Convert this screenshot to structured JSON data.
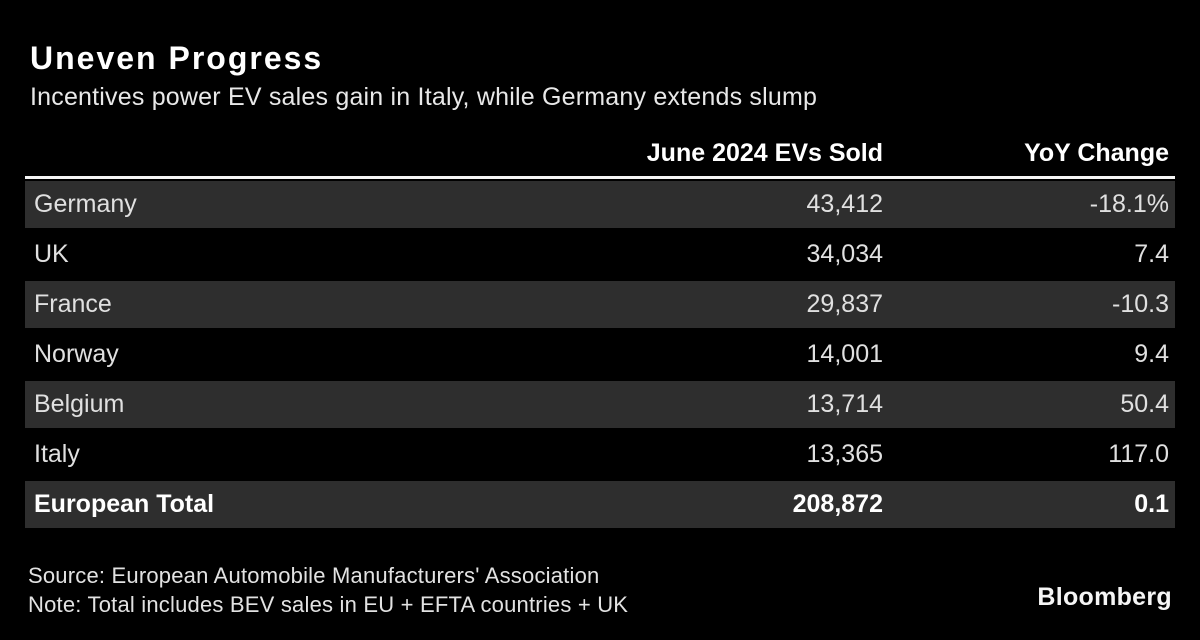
{
  "header": {
    "title": "Uneven Progress",
    "subtitle": "Incentives power EV sales gain in Italy, while Germany extends slump"
  },
  "table": {
    "col_evs": "June 2024 EVs Sold",
    "col_yoy": "YoY Change"
  },
  "chart_data": {
    "type": "table",
    "title": "Uneven Progress",
    "subtitle": "Incentives power EV sales gain in Italy, while Germany extends slump",
    "columns": [
      "",
      "June 2024 EVs Sold",
      "YoY Change"
    ],
    "rows": [
      {
        "country": "Germany",
        "evs_sold": "43,412",
        "yoy_change": "-18.1%",
        "striped": true,
        "total": false
      },
      {
        "country": "UK",
        "evs_sold": "34,034",
        "yoy_change": "7.4",
        "striped": false,
        "total": false
      },
      {
        "country": "France",
        "evs_sold": "29,837",
        "yoy_change": "-10.3",
        "striped": true,
        "total": false
      },
      {
        "country": "Norway",
        "evs_sold": "14,001",
        "yoy_change": "9.4",
        "striped": false,
        "total": false
      },
      {
        "country": "Belgium",
        "evs_sold": "13,714",
        "yoy_change": "50.4",
        "striped": true,
        "total": false
      },
      {
        "country": "Italy",
        "evs_sold": "13,365",
        "yoy_change": "117.0",
        "striped": false,
        "total": false
      },
      {
        "country": "European Total",
        "evs_sold": "208,872",
        "yoy_change": "0.1",
        "striped": true,
        "total": true
      }
    ],
    "numeric": {
      "evs_sold": [
        43412,
        34034,
        29837,
        14001,
        13714,
        13365,
        208872
      ],
      "yoy_change_pct": [
        -18.1,
        7.4,
        -10.3,
        9.4,
        50.4,
        117.0,
        0.1
      ]
    }
  },
  "footer": {
    "source": "Source: European Automobile Manufacturers' Association",
    "note": "Note: Total includes BEV sales in EU + EFTA countries + UK",
    "brand": "Bloomberg"
  },
  "colors": {
    "background": "#000000",
    "row_stripe": "#2e2e2e",
    "divider": "#f4f4f4",
    "title_text": "#ffffff",
    "body_text": "#e0e0e0"
  }
}
